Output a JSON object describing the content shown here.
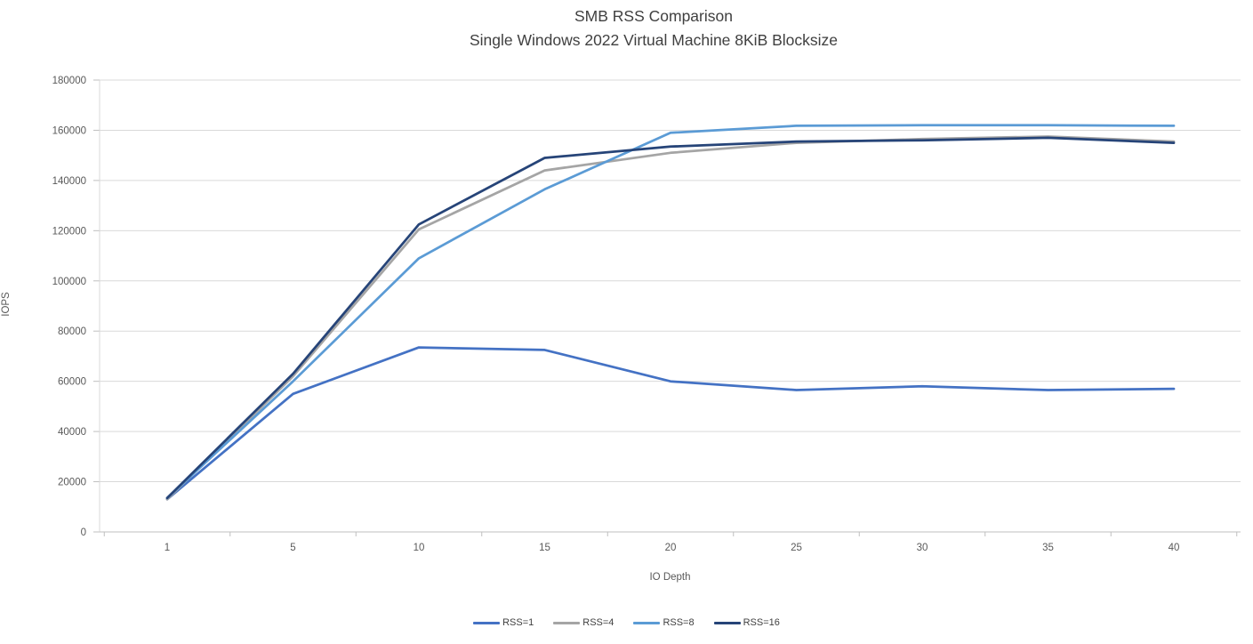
{
  "chart_data": {
    "type": "line",
    "title": "SMB RSS Comparison",
    "subtitle": "Single Windows 2022 Virtual Machine 8KiB Blocksize",
    "xlabel": "IO Depth",
    "ylabel": "IOPS",
    "categories": [
      1,
      5,
      10,
      15,
      20,
      25,
      30,
      35,
      40
    ],
    "ylim": [
      0,
      180000
    ],
    "ytick_step": 20000,
    "ytick_labels": [
      "0",
      "20000",
      "40000",
      "60000",
      "80000",
      "100000",
      "120000",
      "140000",
      "160000",
      "180000"
    ],
    "grid": true,
    "legend_position": "bottom",
    "series": [
      {
        "name": "RSS=1",
        "color": "#4472C4",
        "values": [
          13000,
          55000,
          73500,
          72500,
          60000,
          56500,
          58000,
          56500,
          57000
        ]
      },
      {
        "name": "RSS=4",
        "color": "#A5A5A5",
        "values": [
          13000,
          62000,
          120500,
          144000,
          151000,
          155000,
          156500,
          157500,
          155500
        ]
      },
      {
        "name": "RSS=8",
        "color": "#5B9BD5",
        "values": [
          13500,
          60000,
          109000,
          136500,
          159000,
          161800,
          162000,
          162000,
          161800
        ]
      },
      {
        "name": "RSS=16",
        "color": "#264478",
        "values": [
          13500,
          63000,
          122500,
          149000,
          153500,
          155500,
          156000,
          157000,
          155000
        ]
      }
    ]
  },
  "theme": {
    "background": "#ffffff",
    "title_color": "#404040",
    "axis_text_color": "#595959",
    "gridline_color": "#D9D9D9",
    "axis_line_color": "#BFBFBF",
    "tick_color": "#BFBFBF",
    "legend_text_color": "#404040"
  }
}
